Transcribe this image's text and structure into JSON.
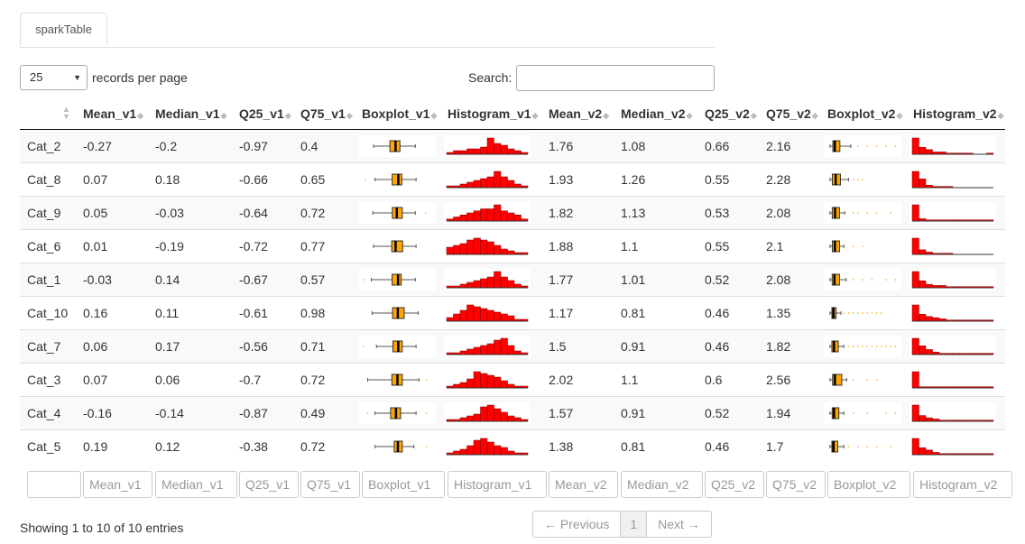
{
  "tab": "sparkTable",
  "length": {
    "value": "25",
    "label": "records per page"
  },
  "search": {
    "label": "Search:",
    "value": ""
  },
  "columns": [
    "Mean_v1",
    "Median_v1",
    "Q25_v1",
    "Q75_v1",
    "Boxplot_v1",
    "Histogram_v1",
    "Mean_v2",
    "Median_v2",
    "Q25_v2",
    "Q75_v2",
    "Boxplot_v2",
    "Histogram_v2"
  ],
  "rows": [
    {
      "cat": "Cat_2",
      "v": [
        "-0.27",
        "-0.2",
        "-0.97",
        "0.4",
        "1.76",
        "1.08",
        "0.66",
        "2.16"
      ],
      "b1": {
        "wmin": -3.2,
        "q1": -0.97,
        "med": -0.2,
        "q3": 0.4,
        "wmax": 2.5
      },
      "h1": [
        1,
        2,
        2,
        3,
        3,
        4,
        9,
        6,
        5,
        3,
        2,
        1
      ],
      "b2": {
        "wmin": 0.05,
        "q1": 0.66,
        "med": 1.08,
        "q3": 2.16,
        "wmax": 4.5,
        "out": [
          6,
          8,
          10,
          12,
          14
        ]
      },
      "h2": [
        14,
        6,
        4,
        2,
        2,
        1,
        1,
        1,
        1,
        0,
        0,
        1
      ]
    },
    {
      "cat": "Cat_8",
      "v": [
        "0.07",
        "0.18",
        "-0.66",
        "0.65",
        "1.93",
        "1.26",
        "0.55",
        "2.28"
      ],
      "b1": {
        "wmin": -3.0,
        "q1": -0.66,
        "med": 0.18,
        "q3": 0.65,
        "wmax": 2.6,
        "out": [
          -4.3
        ]
      },
      "h1": [
        1,
        1,
        2,
        3,
        4,
        5,
        6,
        9,
        6,
        4,
        2,
        1
      ],
      "b2": {
        "wmin": 0.05,
        "q1": 0.55,
        "med": 1.26,
        "q3": 2.28,
        "wmax": 4.0,
        "out": [
          5,
          6,
          7
        ]
      },
      "h2": [
        13,
        7,
        2,
        1,
        1,
        1,
        0,
        0,
        0,
        0,
        0,
        0
      ]
    },
    {
      "cat": "Cat_9",
      "v": [
        "0.05",
        "-0.03",
        "-0.64",
        "0.72",
        "1.82",
        "1.13",
        "0.53",
        "2.08"
      ],
      "b1": {
        "wmin": -3.3,
        "q1": -0.64,
        "med": -0.03,
        "q3": 0.72,
        "wmax": 2.5,
        "out": [
          3.9
        ]
      },
      "h1": [
        1,
        2,
        3,
        4,
        5,
        6,
        6,
        8,
        5,
        4,
        3,
        1
      ],
      "b2": {
        "wmin": 0.05,
        "q1": 0.53,
        "med": 1.13,
        "q3": 2.08,
        "wmax": 3.2,
        "out": [
          5,
          6,
          8,
          10,
          13
        ]
      },
      "h2": [
        14,
        2,
        1,
        1,
        1,
        1,
        1,
        1,
        1,
        1,
        1,
        1
      ]
    },
    {
      "cat": "Cat_6",
      "v": [
        "0.01",
        "-0.19",
        "-0.72",
        "0.77",
        "1.88",
        "1.1",
        "0.55",
        "2.1"
      ],
      "b1": {
        "wmin": -3.2,
        "q1": -0.72,
        "med": -0.19,
        "q3": 0.77,
        "wmax": 2.6
      },
      "h1": [
        4,
        5,
        6,
        8,
        9,
        8,
        7,
        5,
        3,
        2,
        1,
        1
      ],
      "b2": {
        "wmin": 0.05,
        "q1": 0.55,
        "med": 1.1,
        "q3": 2.1,
        "wmax": 3.0,
        "out": [
          5,
          7
        ]
      },
      "h2": [
        14,
        4,
        2,
        1,
        1,
        1,
        0,
        0,
        0,
        0,
        0,
        0
      ]
    },
    {
      "cat": "Cat_1",
      "v": [
        "-0.03",
        "0.14",
        "-0.67",
        "0.57",
        "1.77",
        "1.01",
        "0.52",
        "2.08"
      ],
      "b1": {
        "wmin": -3.5,
        "q1": -0.67,
        "med": 0.14,
        "q3": 0.57,
        "wmax": 2.5,
        "out": [
          -4.5
        ]
      },
      "h1": [
        1,
        1,
        2,
        3,
        4,
        5,
        6,
        9,
        6,
        4,
        2,
        1
      ],
      "b2": {
        "wmin": 0.05,
        "q1": 0.52,
        "med": 1.01,
        "q3": 2.08,
        "wmax": 3.5,
        "out": [
          5,
          7,
          9,
          12,
          14
        ]
      },
      "h2": [
        14,
        6,
        3,
        2,
        2,
        1,
        1,
        1,
        1,
        1,
        1,
        1
      ]
    },
    {
      "cat": "Cat_10",
      "v": [
        "0.16",
        "0.11",
        "-0.61",
        "0.98",
        "1.17",
        "0.81",
        "0.46",
        "1.35"
      ],
      "b1": {
        "wmin": -3.4,
        "q1": -0.61,
        "med": 0.11,
        "q3": 0.98,
        "wmax": 2.9
      },
      "h1": [
        2,
        4,
        6,
        9,
        8,
        7,
        6,
        5,
        4,
        3,
        1,
        1
      ],
      "b2": {
        "wmin": 0.05,
        "q1": 0.46,
        "med": 0.81,
        "q3": 1.35,
        "wmax": 2.4,
        "out": [
          3,
          4,
          5,
          6,
          7,
          8,
          9,
          10,
          11
        ]
      },
      "h2": [
        14,
        6,
        4,
        3,
        2,
        1,
        1,
        1,
        1,
        1,
        1,
        1
      ]
    },
    {
      "cat": "Cat_7",
      "v": [
        "0.06",
        "0.17",
        "-0.56",
        "0.71",
        "1.5",
        "0.91",
        "0.46",
        "1.82"
      ],
      "b1": {
        "wmin": -2.8,
        "q1": -0.56,
        "med": 0.17,
        "q3": 0.71,
        "wmax": 2.6,
        "out": [
          -4.6
        ]
      },
      "h1": [
        1,
        1,
        2,
        3,
        4,
        5,
        6,
        8,
        9,
        5,
        2,
        1
      ],
      "b2": {
        "wmin": 0.05,
        "q1": 0.46,
        "med": 0.91,
        "q3": 1.82,
        "wmax": 3.0,
        "out": [
          4,
          5,
          6,
          7,
          8,
          9,
          10,
          11,
          12,
          13,
          14
        ]
      },
      "h2": [
        13,
        7,
        4,
        2,
        1,
        1,
        1,
        1,
        1,
        1,
        1,
        1
      ]
    },
    {
      "cat": "Cat_3",
      "v": [
        "0.07",
        "0.06",
        "-0.7",
        "0.72",
        "2.02",
        "1.1",
        "0.6",
        "2.56"
      ],
      "b1": {
        "wmin": -4.0,
        "q1": -0.7,
        "med": 0.06,
        "q3": 0.72,
        "wmax": 3.0,
        "out": [
          4.0
        ]
      },
      "h1": [
        1,
        2,
        3,
        5,
        9,
        8,
        7,
        6,
        4,
        2,
        1,
        1
      ],
      "b2": {
        "wmin": 0.05,
        "q1": 0.6,
        "med": 1.1,
        "q3": 2.56,
        "wmax": 3.6,
        "out": [
          5,
          8,
          10
        ]
      },
      "h2": [
        14,
        1,
        1,
        1,
        1,
        1,
        1,
        1,
        1,
        1,
        1,
        1
      ]
    },
    {
      "cat": "Cat_4",
      "v": [
        "-0.16",
        "-0.14",
        "-0.87",
        "0.49",
        "1.57",
        "0.91",
        "0.52",
        "1.94"
      ],
      "b1": {
        "wmin": -3.0,
        "q1": -0.87,
        "med": -0.14,
        "q3": 0.49,
        "wmax": 2.6,
        "out": [
          -4.0,
          4.0
        ]
      },
      "h1": [
        1,
        1,
        2,
        3,
        4,
        8,
        9,
        7,
        5,
        3,
        2,
        1
      ],
      "b2": {
        "wmin": 0.05,
        "q1": 0.52,
        "med": 0.91,
        "q3": 1.94,
        "wmax": 3.0,
        "out": [
          5,
          8,
          12,
          14
        ]
      },
      "h2": [
        14,
        5,
        3,
        2,
        1,
        1,
        1,
        1,
        1,
        1,
        1,
        1
      ]
    },
    {
      "cat": "Cat_5",
      "v": [
        "0.19",
        "0.12",
        "-0.38",
        "0.72",
        "1.38",
        "0.81",
        "0.46",
        "1.7"
      ],
      "b1": {
        "wmin": -3.0,
        "q1": -0.38,
        "med": 0.12,
        "q3": 0.72,
        "wmax": 2.3,
        "out": [
          4.0
        ]
      },
      "h1": [
        1,
        2,
        3,
        5,
        8,
        9,
        7,
        5,
        4,
        2,
        1,
        1
      ],
      "b2": {
        "wmin": 0.05,
        "q1": 0.46,
        "med": 0.81,
        "q3": 1.7,
        "wmax": 3.0,
        "out": [
          4,
          6,
          8,
          10,
          13
        ]
      },
      "h2": [
        14,
        6,
        4,
        2,
        1,
        1,
        1,
        1,
        1,
        1,
        1,
        1
      ]
    }
  ],
  "footer": {
    "info": "Showing 1 to 10 of 10 entries",
    "prev": "← Previous",
    "page": "1",
    "next": "Next →"
  },
  "colors": {
    "box": "#ffa500",
    "hist": "#ff0000",
    "accent": "#333333"
  }
}
